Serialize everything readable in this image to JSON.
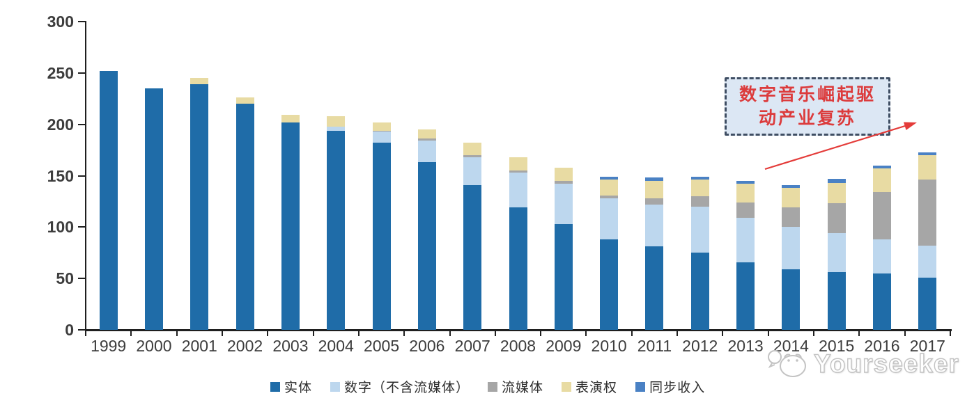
{
  "chart_data": {
    "type": "bar",
    "stacked": true,
    "title": "",
    "xlabel": "",
    "ylabel": "",
    "ylim": [
      0,
      300
    ],
    "y_ticks": [
      0,
      50,
      100,
      150,
      200,
      250,
      300
    ],
    "grid": false,
    "legend_position": "bottom",
    "categories": [
      "1999",
      "2000",
      "2001",
      "2002",
      "2003",
      "2004",
      "2005",
      "2006",
      "2007",
      "2008",
      "2009",
      "2010",
      "2011",
      "2012",
      "2013",
      "2014",
      "2015",
      "2016",
      "2017"
    ],
    "series": [
      {
        "key": "physical",
        "name": "实体",
        "color": "#1f6ca8",
        "values": [
          252,
          235,
          239,
          220,
          202,
          194,
          182,
          163,
          141,
          119,
          103,
          88,
          81,
          75,
          66,
          59,
          56,
          55,
          51
        ]
      },
      {
        "key": "digital",
        "name": "数字（不含流媒体）",
        "color": "#bdd7ee",
        "values": [
          0,
          0,
          0,
          0,
          0,
          4,
          11,
          21,
          27,
          34,
          39,
          40,
          41,
          45,
          43,
          41,
          38,
          33,
          31
        ]
      },
      {
        "key": "streaming",
        "name": "流媒体",
        "color": "#a6a6a6",
        "values": [
          0,
          0,
          0,
          0,
          0,
          0,
          1,
          2,
          2,
          2,
          3,
          3,
          6,
          10,
          15,
          19,
          29,
          46,
          64
        ]
      },
      {
        "key": "performance",
        "name": "表演权",
        "color": "#e8dba3",
        "values": [
          0,
          0,
          6,
          6,
          7,
          10,
          8,
          9,
          12,
          13,
          13,
          15,
          17,
          16,
          18,
          19,
          20,
          23,
          24
        ]
      },
      {
        "key": "sync",
        "name": "同步收入",
        "color": "#4a81c4",
        "values": [
          0,
          0,
          0,
          0,
          0,
          0,
          0,
          0,
          0,
          0,
          0,
          3,
          3,
          3,
          3,
          3,
          4,
          3,
          3
        ]
      }
    ]
  },
  "annotation": {
    "text": "数字音乐崛起驱动产业复苏",
    "line1": "数字音乐崛起驱",
    "line2": "动产业复苏"
  },
  "watermark": {
    "text": "Yourseeker"
  },
  "colors": {
    "axis": "#1f1f1f",
    "annotation_text": "#dc3b3c",
    "annotation_border": "#3f4e63",
    "annotation_fill": "#dce7f4",
    "arrow": "#e43b39",
    "watermark_gray": "#c3c3c3"
  }
}
